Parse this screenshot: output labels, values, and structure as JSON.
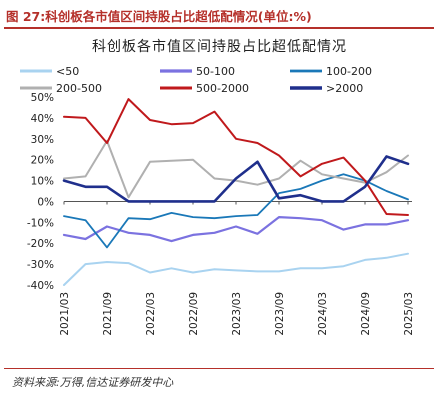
{
  "figure": {
    "label": "图 27:科创板各市值区间持股占比超低配情况(单位:%)",
    "source": "资料来源:万得,信达证券研发中心"
  },
  "chart_data": {
    "type": "line",
    "title": "科创板各市值区间持股占比超低配情况",
    "xlabel": "",
    "ylabel": "",
    "ylim": [
      -40,
      50
    ],
    "yticks": [
      -40,
      -30,
      -20,
      -10,
      0,
      10,
      20,
      30,
      40,
      50
    ],
    "ytick_labels": [
      "-40%",
      "-30%",
      "-20%",
      "-10%",
      "0%",
      "10%",
      "20%",
      "30%",
      "40%",
      "50%"
    ],
    "xtick_labels": [
      "2021/03",
      "2021/09",
      "2022/03",
      "2022/09",
      "2023/03",
      "2023/09",
      "2024/03",
      "2024/09",
      "2025/03"
    ],
    "grid": false,
    "legend_position": "top",
    "x": [
      "2021/03",
      "2021/06",
      "2021/09",
      "2021/12",
      "2022/03",
      "2022/06",
      "2022/09",
      "2022/12",
      "2023/03",
      "2023/06",
      "2023/09",
      "2023/12",
      "2024/03",
      "2024/06",
      "2024/09",
      "2024/12",
      "2025/03"
    ],
    "series": [
      {
        "name": "<50",
        "color": "#a9d3f0",
        "width": 2,
        "values": [
          -40,
          -30,
          -29,
          -29.5,
          -34,
          -32,
          -34,
          -32.5,
          -33,
          -33.5,
          -33.5,
          -32,
          -32,
          -31,
          -28,
          -27,
          -25
        ]
      },
      {
        "name": "50-100",
        "color": "#7b72e0",
        "width": 2.2,
        "values": [
          -16,
          -18,
          -12,
          -15,
          -16,
          -19,
          -16,
          -15,
          -12,
          -15.5,
          -7.5,
          -8,
          -9,
          -13.5,
          -11,
          -11,
          -9
        ]
      },
      {
        "name": "100-200",
        "color": "#1a78b8",
        "width": 1.8,
        "values": [
          -7,
          -9,
          -22,
          -8,
          -8.5,
          -5.5,
          -7.5,
          -8,
          -7,
          -6.5,
          4,
          6,
          10,
          13,
          10,
          5,
          1
        ]
      },
      {
        "name": "200-500",
        "color": "#b0b0b0",
        "width": 2,
        "values": [
          11,
          12,
          29,
          2,
          19,
          19.5,
          20,
          11,
          10,
          8,
          11,
          19.5,
          13,
          11,
          9,
          14,
          22
        ]
      },
      {
        "name": "500-2000",
        "color": "#c0191c",
        "width": 2,
        "values": [
          40.5,
          40,
          28,
          49,
          39,
          37,
          37.5,
          43,
          30,
          28,
          22,
          12,
          18,
          21,
          10,
          -6,
          -6.5
        ]
      },
      {
        "name": ">2000",
        "color": "#1f2f8c",
        "width": 2.6,
        "values": [
          10,
          7,
          7,
          0,
          0,
          0,
          0,
          0,
          11,
          19,
          1.5,
          3,
          0,
          0,
          7,
          21.5,
          18
        ]
      }
    ]
  }
}
